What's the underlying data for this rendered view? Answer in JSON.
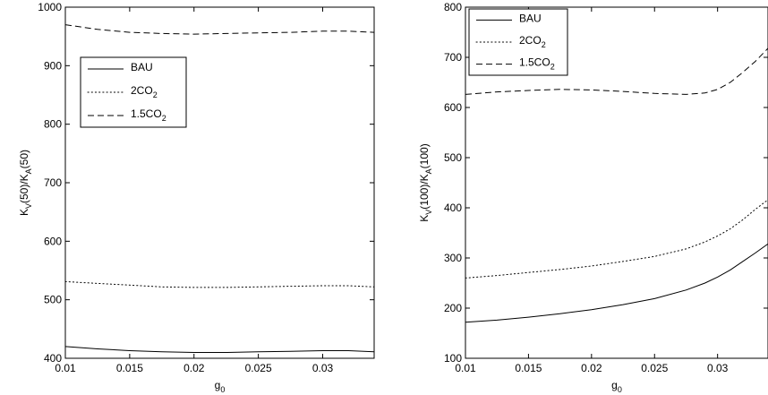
{
  "chart_data": [
    {
      "type": "line",
      "xlabel": {
        "base": "g",
        "sub": "0"
      },
      "ylabel": {
        "parts": [
          {
            "t": "K"
          },
          {
            "t": "V",
            "sub": true
          },
          {
            "t": "(50)/K"
          },
          {
            "t": "A",
            "sub": true
          },
          {
            "t": "(50)"
          }
        ]
      },
      "xlim": [
        0.01,
        0.034
      ],
      "ylim": [
        400,
        1000
      ],
      "xticks": [
        0.01,
        0.015,
        0.02,
        0.025,
        0.03
      ],
      "xtick_labels": [
        "0.01",
        "0.015",
        "0.02",
        "0.025",
        "0.03"
      ],
      "yticks": [
        400,
        500,
        600,
        700,
        800,
        900,
        1000
      ],
      "ytick_labels": [
        "400",
        "500",
        "600",
        "700",
        "800",
        "900",
        "1000"
      ],
      "grid": false,
      "legend_position": "upper-left",
      "series": [
        {
          "name": "BAU",
          "label_parts": [
            {
              "t": "BAU"
            }
          ],
          "style": "solid",
          "x": [
            0.01,
            0.0125,
            0.015,
            0.0175,
            0.02,
            0.0225,
            0.025,
            0.0275,
            0.03,
            0.032,
            0.034
          ],
          "y": [
            420,
            416,
            413,
            411,
            410,
            410,
            411,
            412,
            413,
            413,
            411
          ]
        },
        {
          "name": "2CO2",
          "label_parts": [
            {
              "t": "2CO"
            },
            {
              "t": "2",
              "sub": true
            }
          ],
          "style": "dotted",
          "x": [
            0.01,
            0.0125,
            0.015,
            0.0175,
            0.02,
            0.0225,
            0.025,
            0.0275,
            0.03,
            0.032,
            0.034
          ],
          "y": [
            531,
            528,
            525,
            522,
            521,
            521,
            522,
            523,
            524,
            524,
            522
          ]
        },
        {
          "name": "1.5CO2",
          "label_parts": [
            {
              "t": "1.5CO"
            },
            {
              "t": "2",
              "sub": true
            }
          ],
          "style": "dashed",
          "x": [
            0.01,
            0.0125,
            0.015,
            0.0175,
            0.02,
            0.0225,
            0.025,
            0.0275,
            0.03,
            0.032,
            0.034
          ],
          "y": [
            970,
            962,
            957,
            955,
            954,
            955,
            956,
            957,
            959,
            959,
            957
          ]
        }
      ]
    },
    {
      "type": "line",
      "xlabel": {
        "base": "g",
        "sub": "0"
      },
      "ylabel": {
        "parts": [
          {
            "t": "K"
          },
          {
            "t": "V",
            "sub": true
          },
          {
            "t": "(100)/K"
          },
          {
            "t": "A",
            "sub": true
          },
          {
            "t": "(100)"
          }
        ]
      },
      "xlim": [
        0.01,
        0.034
      ],
      "ylim": [
        100,
        800
      ],
      "xticks": [
        0.01,
        0.015,
        0.02,
        0.025,
        0.03
      ],
      "xtick_labels": [
        "0.01",
        "0.015",
        "0.02",
        "0.025",
        "0.03"
      ],
      "yticks": [
        100,
        200,
        300,
        400,
        500,
        600,
        700,
        800
      ],
      "ytick_labels": [
        "100",
        "200",
        "300",
        "400",
        "500",
        "600",
        "700",
        "800"
      ],
      "grid": false,
      "legend_position": "upper-left",
      "series": [
        {
          "name": "BAU",
          "label_parts": [
            {
              "t": "BAU"
            }
          ],
          "style": "solid",
          "x": [
            0.01,
            0.0125,
            0.015,
            0.0175,
            0.02,
            0.0225,
            0.025,
            0.0275,
            0.029,
            0.03,
            0.031,
            0.032,
            0.033,
            0.034
          ],
          "y": [
            172,
            176,
            182,
            189,
            197,
            207,
            219,
            236,
            250,
            262,
            276,
            293,
            310,
            328
          ]
        },
        {
          "name": "2CO2",
          "label_parts": [
            {
              "t": "2CO"
            },
            {
              "t": "2",
              "sub": true
            }
          ],
          "style": "dotted",
          "x": [
            0.01,
            0.0125,
            0.015,
            0.0175,
            0.02,
            0.0225,
            0.025,
            0.0275,
            0.029,
            0.03,
            0.031,
            0.032,
            0.033,
            0.034
          ],
          "y": [
            260,
            265,
            271,
            277,
            284,
            293,
            303,
            318,
            332,
            344,
            358,
            376,
            397,
            416
          ]
        },
        {
          "name": "1.5CO2",
          "label_parts": [
            {
              "t": "1.5CO"
            },
            {
              "t": "2",
              "sub": true
            }
          ],
          "style": "dashed",
          "x": [
            0.01,
            0.0125,
            0.015,
            0.0175,
            0.02,
            0.0225,
            0.025,
            0.0275,
            0.029,
            0.03,
            0.031,
            0.032,
            0.033,
            0.034
          ],
          "y": [
            626,
            631,
            634,
            636,
            635,
            632,
            628,
            626,
            629,
            636,
            650,
            670,
            692,
            718
          ]
        }
      ]
    }
  ]
}
